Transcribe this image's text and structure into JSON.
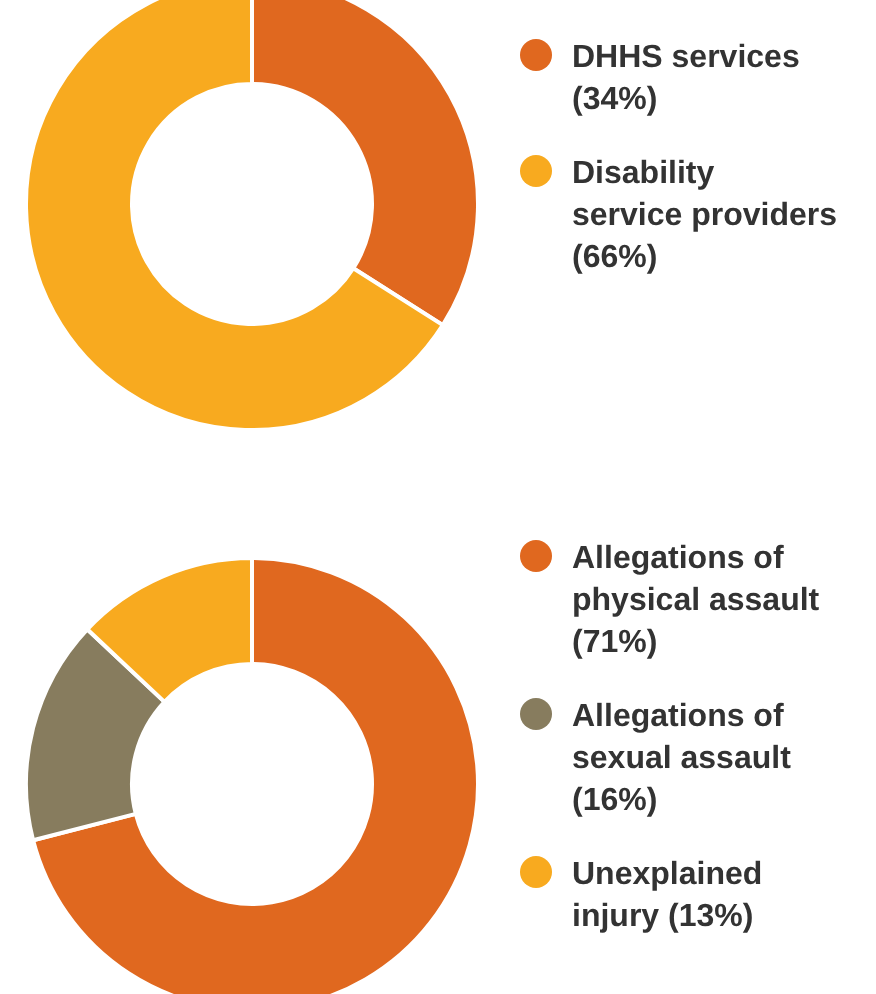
{
  "chart_data": [
    {
      "type": "donut",
      "categories": [
        "DHHS services",
        "Disability service providers"
      ],
      "values": [
        34,
        66
      ],
      "value_labels": [
        "(34%)",
        "(66%)"
      ],
      "colors": [
        "#e0681f",
        "#f8aa1f"
      ],
      "legend": "right"
    },
    {
      "type": "donut",
      "categories": [
        "Allegations of physical assault",
        "Allegations of sexual assault",
        "Unexplained injury"
      ],
      "values": [
        71,
        16,
        13
      ],
      "value_labels": [
        "(71%)",
        "(16%)",
        "(13%)"
      ],
      "colors": [
        "#e0681f",
        "#877c5e",
        "#f8aa1f"
      ],
      "legend": "right"
    }
  ]
}
